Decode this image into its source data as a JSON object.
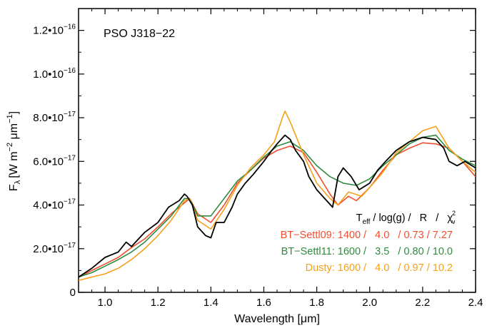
{
  "chart_data": {
    "type": "line",
    "title": "PSO J318−22",
    "xlabel": "Wavelength [μm]",
    "ylabel": {
      "main": "F",
      "sub": "λ",
      "units": "[W m",
      "exp1": "−2",
      "mid": " μm",
      "exp2": "−1",
      "close": "]"
    },
    "xlim": [
      0.9,
      2.4
    ],
    "ylim": [
      0,
      1.3e-16
    ],
    "x_ticks": [
      {
        "value": 1.0,
        "label": "1.0"
      },
      {
        "value": 1.2,
        "label": "1.2"
      },
      {
        "value": 1.4,
        "label": "1.4"
      },
      {
        "value": 1.6,
        "label": "1.6"
      },
      {
        "value": 1.8,
        "label": "1.8"
      },
      {
        "value": 2.0,
        "label": "2.0"
      },
      {
        "value": 2.2,
        "label": "2.2"
      },
      {
        "value": 2.4,
        "label": "2.4"
      }
    ],
    "y_ticks": [
      {
        "value": 0,
        "mant": "0",
        "exp": ""
      },
      {
        "value": 2e-17,
        "mant": "2.0•10",
        "exp": "−17"
      },
      {
        "value": 4e-17,
        "mant": "4.0•10",
        "exp": "−17"
      },
      {
        "value": 6e-17,
        "mant": "6.0•10",
        "exp": "−17"
      },
      {
        "value": 8e-17,
        "mant": "8.0•10",
        "exp": "−17"
      },
      {
        "value": 1e-16,
        "mant": "1.0•10",
        "exp": "−16"
      },
      {
        "value": 1.2e-16,
        "mant": "1.2•10",
        "exp": "−16"
      }
    ],
    "series": [
      {
        "name": "BT-Settl09",
        "color": "#f04e2e",
        "points": [
          [
            0.9,
            0.7
          ],
          [
            0.95,
            1.0
          ],
          [
            1.0,
            1.3
          ],
          [
            1.05,
            1.6
          ],
          [
            1.1,
            2.05
          ],
          [
            1.15,
            2.45
          ],
          [
            1.2,
            3.0
          ],
          [
            1.25,
            3.6
          ],
          [
            1.3,
            4.1
          ],
          [
            1.32,
            4.3
          ],
          [
            1.35,
            3.6
          ],
          [
            1.4,
            3.2
          ],
          [
            1.45,
            4.0
          ],
          [
            1.5,
            5.0
          ],
          [
            1.55,
            5.6
          ],
          [
            1.6,
            6.15
          ],
          [
            1.65,
            6.5
          ],
          [
            1.7,
            6.7
          ],
          [
            1.75,
            6.4
          ],
          [
            1.8,
            5.5
          ],
          [
            1.85,
            4.5
          ],
          [
            1.88,
            4.0
          ],
          [
            1.92,
            4.4
          ],
          [
            1.95,
            4.2
          ],
          [
            2.0,
            4.8
          ],
          [
            2.05,
            5.6
          ],
          [
            2.1,
            6.3
          ],
          [
            2.15,
            6.6
          ],
          [
            2.2,
            6.85
          ],
          [
            2.25,
            6.8
          ],
          [
            2.3,
            6.6
          ],
          [
            2.35,
            6.0
          ],
          [
            2.4,
            5.3
          ]
        ]
      },
      {
        "name": "BT-Settl11",
        "color": "#2e8b3e",
        "points": [
          [
            0.9,
            0.7
          ],
          [
            0.95,
            0.9
          ],
          [
            1.0,
            1.2
          ],
          [
            1.05,
            1.5
          ],
          [
            1.1,
            1.85
          ],
          [
            1.15,
            2.3
          ],
          [
            1.2,
            2.9
          ],
          [
            1.25,
            3.5
          ],
          [
            1.3,
            4.3
          ],
          [
            1.32,
            4.3
          ],
          [
            1.35,
            3.5
          ],
          [
            1.4,
            3.5
          ],
          [
            1.45,
            4.3
          ],
          [
            1.5,
            5.1
          ],
          [
            1.55,
            5.6
          ],
          [
            1.6,
            6.2
          ],
          [
            1.65,
            6.7
          ],
          [
            1.7,
            6.9
          ],
          [
            1.75,
            6.5
          ],
          [
            1.8,
            5.8
          ],
          [
            1.85,
            5.3
          ],
          [
            1.9,
            5.0
          ],
          [
            1.95,
            4.9
          ],
          [
            2.0,
            5.2
          ],
          [
            2.05,
            5.8
          ],
          [
            2.1,
            6.3
          ],
          [
            2.15,
            6.8
          ],
          [
            2.2,
            7.1
          ],
          [
            2.25,
            7.2
          ],
          [
            2.3,
            6.5
          ],
          [
            2.35,
            6.1
          ],
          [
            2.4,
            5.8
          ]
        ]
      },
      {
        "name": "Dusty",
        "color": "#f4a01b",
        "points": [
          [
            0.9,
            0.55
          ],
          [
            0.95,
            0.7
          ],
          [
            1.0,
            0.85
          ],
          [
            1.05,
            1.1
          ],
          [
            1.1,
            1.5
          ],
          [
            1.15,
            2.0
          ],
          [
            1.2,
            2.6
          ],
          [
            1.25,
            3.3
          ],
          [
            1.3,
            4.2
          ],
          [
            1.32,
            4.3
          ],
          [
            1.35,
            3.3
          ],
          [
            1.4,
            2.9
          ],
          [
            1.45,
            3.8
          ],
          [
            1.5,
            4.9
          ],
          [
            1.55,
            5.7
          ],
          [
            1.6,
            6.3
          ],
          [
            1.64,
            6.9
          ],
          [
            1.67,
            8.0
          ],
          [
            1.68,
            8.3
          ],
          [
            1.7,
            7.8
          ],
          [
            1.75,
            6.3
          ],
          [
            1.8,
            5.0
          ],
          [
            1.85,
            4.3
          ],
          [
            1.88,
            4.0
          ],
          [
            1.92,
            4.6
          ],
          [
            1.97,
            4.4
          ],
          [
            2.0,
            4.8
          ],
          [
            2.05,
            5.5
          ],
          [
            2.1,
            6.4
          ],
          [
            2.15,
            6.9
          ],
          [
            2.2,
            7.4
          ],
          [
            2.25,
            7.6
          ],
          [
            2.3,
            6.6
          ],
          [
            2.35,
            6.0
          ],
          [
            2.4,
            5.5
          ]
        ]
      },
      {
        "name": "PSO J318−22",
        "color": "#000000",
        "points": [
          [
            0.9,
            0.7
          ],
          [
            0.95,
            1.1
          ],
          [
            1.0,
            1.6
          ],
          [
            1.05,
            1.85
          ],
          [
            1.08,
            2.3
          ],
          [
            1.1,
            2.1
          ],
          [
            1.15,
            2.75
          ],
          [
            1.2,
            3.2
          ],
          [
            1.24,
            3.9
          ],
          [
            1.28,
            4.2
          ],
          [
            1.3,
            4.5
          ],
          [
            1.31,
            4.4
          ],
          [
            1.33,
            4.0
          ],
          [
            1.35,
            3.0
          ],
          [
            1.38,
            2.6
          ],
          [
            1.4,
            2.5
          ],
          [
            1.42,
            3.2
          ],
          [
            1.45,
            3.2
          ],
          [
            1.48,
            3.9
          ],
          [
            1.5,
            4.5
          ],
          [
            1.53,
            5.0
          ],
          [
            1.56,
            5.4
          ],
          [
            1.6,
            6.0
          ],
          [
            1.63,
            6.5
          ],
          [
            1.65,
            6.8
          ],
          [
            1.68,
            7.2
          ],
          [
            1.7,
            7.0
          ],
          [
            1.72,
            6.5
          ],
          [
            1.75,
            6.0
          ],
          [
            1.77,
            5.3
          ],
          [
            1.8,
            4.7
          ],
          [
            1.83,
            4.3
          ],
          [
            1.86,
            3.9
          ],
          [
            1.88,
            5.3
          ],
          [
            1.9,
            5.7
          ],
          [
            1.93,
            5.3
          ],
          [
            1.96,
            4.7
          ],
          [
            2.0,
            5.0
          ],
          [
            2.03,
            5.6
          ],
          [
            2.06,
            6.0
          ],
          [
            2.1,
            6.5
          ],
          [
            2.15,
            6.9
          ],
          [
            2.2,
            7.1
          ],
          [
            2.25,
            7.0
          ],
          [
            2.28,
            6.6
          ],
          [
            2.3,
            6.0
          ],
          [
            2.33,
            5.8
          ],
          [
            2.36,
            6.0
          ],
          [
            2.4,
            5.7
          ]
        ]
      }
    ],
    "y_unit_scale": 1e-17,
    "legend": {
      "header": {
        "teff": "T",
        "teff_sub": "eff",
        "rest": " / log(g) /   R   /   ",
        "chi": "χ",
        "chi_sup": "2",
        "chi_sub": "ν"
      },
      "rows": [
        {
          "text": "BT−Settl09: 1400 /   4.0   / 0.73 / 7.27",
          "color": "#f04e2e"
        },
        {
          "text": "BT−Settl11: 1600 /   3.5   / 0.80 / 10.0",
          "color": "#2e8b3e"
        },
        {
          "text": "Dusty: 1600 /   4.0   / 0.97 / 10.2",
          "color": "#f4a01b"
        }
      ],
      "placement": "bottom-right"
    }
  }
}
